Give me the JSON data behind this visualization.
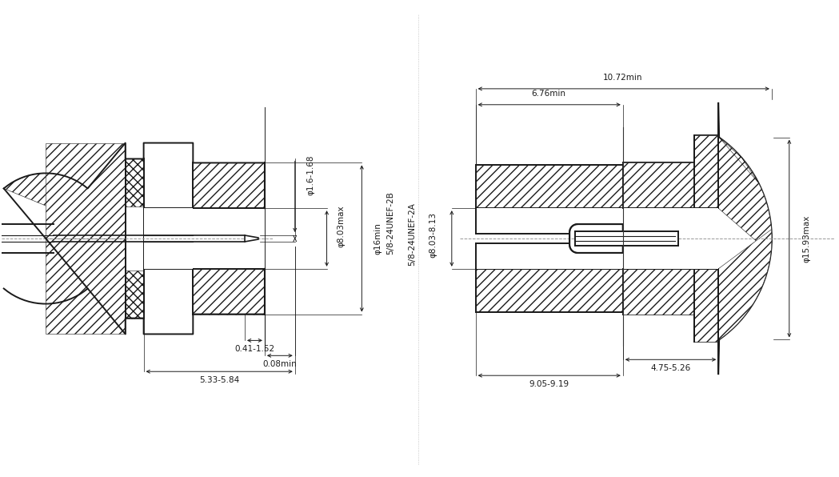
{
  "bg_color": "#ffffff",
  "line_color": "#1a1a1a",
  "figsize": [
    10.49,
    5.96
  ],
  "dpi": 100,
  "ann_left": {
    "phi_1_6": "φ1.6-1.68",
    "phi_8_03": "φ8.03max",
    "phi_16": "φ16min",
    "thread_2B": "5/8-24UNEF-2B",
    "dim_041": "0.41-1.52",
    "dim_008": "0.08min",
    "dim_533": "5.33-5.84"
  },
  "ann_right": {
    "dim_1072": "10.72min",
    "dim_676": "6.76min",
    "phi_803_813": "φ8.03-8.13",
    "thread_2A": "5/8-24UNEF-2A",
    "phi_1593": "φ15.93max",
    "dim_475": "4.75-5.26",
    "dim_905": "9.05-9.19"
  }
}
